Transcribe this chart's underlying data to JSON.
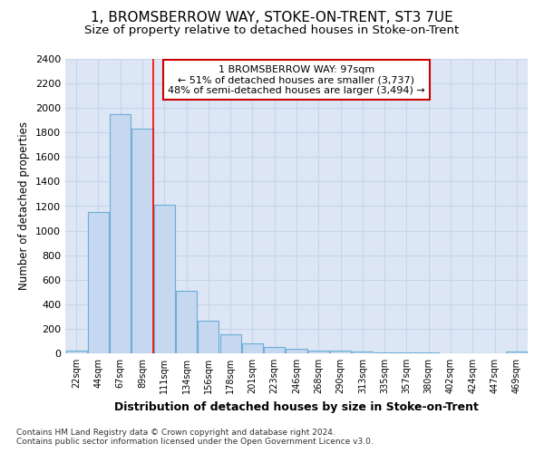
{
  "title": "1, BROMSBERROW WAY, STOKE-ON-TRENT, ST3 7UE",
  "subtitle": "Size of property relative to detached houses in Stoke-on-Trent",
  "xlabel": "Distribution of detached houses by size in Stoke-on-Trent",
  "ylabel": "Number of detached properties",
  "bar_labels": [
    "22sqm",
    "44sqm",
    "67sqm",
    "89sqm",
    "111sqm",
    "134sqm",
    "156sqm",
    "178sqm",
    "201sqm",
    "223sqm",
    "246sqm",
    "268sqm",
    "290sqm",
    "313sqm",
    "335sqm",
    "357sqm",
    "380sqm",
    "402sqm",
    "424sqm",
    "447sqm",
    "469sqm"
  ],
  "bar_values": [
    25,
    1150,
    1950,
    1830,
    1210,
    510,
    265,
    155,
    80,
    50,
    40,
    20,
    20,
    15,
    10,
    5,
    5,
    0,
    0,
    0,
    15
  ],
  "bar_color": "#c5d8f0",
  "bar_edge_color": "#6baed6",
  "red_line_x": 3.5,
  "annotation_title": "1 BROMSBERROW WAY: 97sqm",
  "annotation_line1": "← 51% of detached houses are smaller (3,737)",
  "annotation_line2": "48% of semi-detached houses are larger (3,494) →",
  "ylim": [
    0,
    2400
  ],
  "yticks": [
    0,
    200,
    400,
    600,
    800,
    1000,
    1200,
    1400,
    1600,
    1800,
    2000,
    2200,
    2400
  ],
  "footnote1": "Contains HM Land Registry data © Crown copyright and database right 2024.",
  "footnote2": "Contains public sector information licensed under the Open Government Licence v3.0.",
  "title_fontsize": 11,
  "subtitle_fontsize": 9.5,
  "annotation_box_color": "#ffffff",
  "annotation_box_edge": "#cc0000",
  "grid_color": "#c8d4e8",
  "bg_color": "#dce6f5"
}
